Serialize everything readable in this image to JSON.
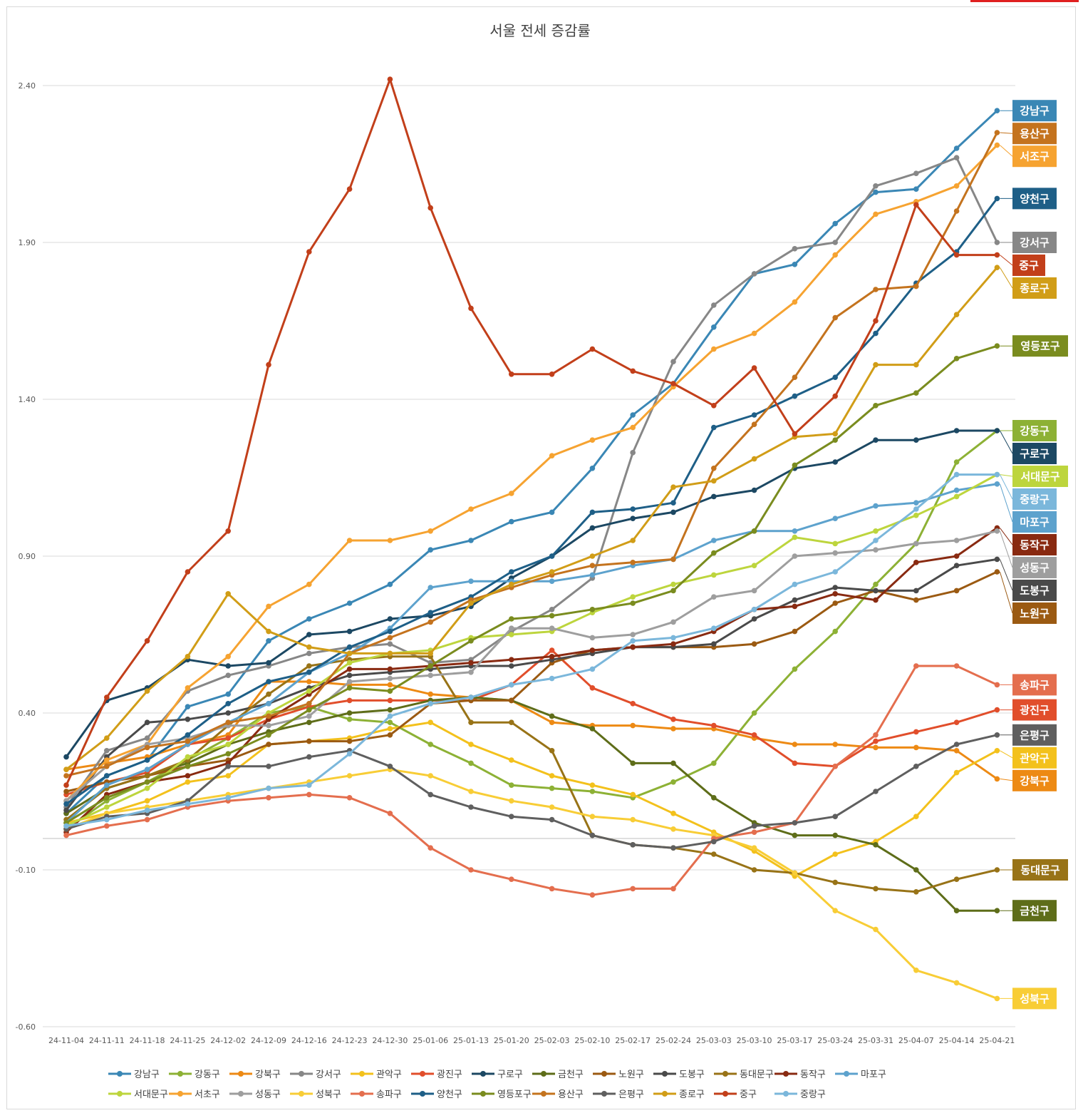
{
  "chart_data": {
    "type": "line",
    "title": "서울 전세 증감률",
    "xlabel": "",
    "ylabel": "",
    "ylim": [
      -0.6,
      2.4
    ],
    "yticks": [
      "2.40",
      "1.90",
      "1.40",
      "0.90",
      "0.40",
      "-0.10",
      "-0.60"
    ],
    "grid": true,
    "legend_position": "bottom",
    "categories": [
      "24-11-04",
      "24-11-11",
      "24-11-18",
      "24-11-25",
      "24-12-02",
      "24-12-09",
      "24-12-16",
      "24-12-23",
      "24-12-30",
      "25-01-06",
      "25-01-13",
      "25-01-20",
      "25-02-03",
      "25-02-10",
      "25-02-17",
      "25-02-24",
      "25-03-03",
      "25-03-10",
      "25-03-17",
      "25-03-24",
      "25-03-31",
      "25-04-07",
      "25-04-14",
      "25-04-21"
    ],
    "series": [
      {
        "name": "강남구",
        "color": "#3A87B5",
        "label": "강남구",
        "values": [
          0.08,
          0.2,
          0.25,
          0.42,
          0.46,
          0.63,
          0.7,
          0.75,
          0.81,
          0.92,
          0.95,
          1.01,
          1.04,
          1.18,
          1.35,
          1.45,
          1.63,
          1.8,
          1.83,
          1.96,
          2.06,
          2.07,
          2.2,
          2.32
        ]
      },
      {
        "name": "강동구",
        "color": "#8DB135",
        "label": "강동구",
        "values": [
          0.03,
          0.12,
          0.18,
          0.25,
          0.32,
          0.4,
          0.42,
          0.38,
          0.37,
          0.3,
          0.24,
          0.17,
          0.16,
          0.15,
          0.13,
          0.18,
          0.24,
          0.4,
          0.54,
          0.66,
          0.81,
          0.94,
          1.2,
          1.3
        ]
      },
      {
        "name": "강북구",
        "color": "#ED8A14",
        "label": "강북구",
        "values": [
          0.22,
          0.24,
          0.26,
          0.3,
          0.33,
          0.5,
          0.5,
          0.49,
          0.49,
          0.46,
          0.45,
          0.44,
          0.37,
          0.36,
          0.36,
          0.35,
          0.35,
          0.32,
          0.3,
          0.3,
          0.29,
          0.29,
          0.28,
          0.19
        ]
      },
      {
        "name": "강서구",
        "color": "#878787",
        "label": "강서구",
        "values": [
          0.1,
          0.28,
          0.32,
          0.47,
          0.52,
          0.55,
          0.59,
          0.61,
          0.62,
          0.56,
          0.57,
          0.66,
          0.73,
          0.83,
          1.23,
          1.52,
          1.7,
          1.8,
          1.88,
          1.9,
          2.08,
          2.12,
          2.17,
          1.9
        ]
      },
      {
        "name": "관악구",
        "color": "#F3C11C",
        "label": "관악구",
        "values": [
          0.05,
          0.08,
          0.12,
          0.18,
          0.2,
          0.3,
          0.31,
          0.32,
          0.35,
          0.37,
          0.3,
          0.25,
          0.2,
          0.17,
          0.14,
          0.08,
          0.02,
          -0.04,
          -0.12,
          -0.05,
          -0.01,
          0.07,
          0.21,
          0.28
        ]
      },
      {
        "name": "광진구",
        "color": "#E14E2B",
        "label": "광진구",
        "values": [
          0.14,
          0.18,
          0.21,
          0.3,
          0.32,
          0.38,
          0.42,
          0.44,
          0.44,
          0.44,
          0.44,
          0.49,
          0.6,
          0.48,
          0.43,
          0.38,
          0.36,
          0.33,
          0.24,
          0.23,
          0.31,
          0.34,
          0.37,
          0.41
        ]
      },
      {
        "name": "구로구",
        "color": "#1C4863",
        "label": "구로구",
        "values": [
          0.26,
          0.44,
          0.48,
          0.57,
          0.55,
          0.56,
          0.65,
          0.66,
          0.7,
          0.71,
          0.74,
          0.83,
          0.9,
          0.99,
          1.02,
          1.04,
          1.09,
          1.11,
          1.18,
          1.2,
          1.27,
          1.27,
          1.3,
          1.3
        ]
      },
      {
        "name": "금천구",
        "color": "#5E6D19",
        "label": "금천구",
        "values": [
          0.08,
          0.16,
          0.2,
          0.24,
          0.3,
          0.34,
          0.37,
          0.4,
          0.41,
          0.44,
          0.45,
          0.44,
          0.39,
          0.35,
          0.24,
          0.24,
          0.13,
          0.05,
          0.01,
          0.01,
          -0.02,
          -0.1,
          -0.23,
          -0.23
        ]
      },
      {
        "name": "노원구",
        "color": "#9B5A12",
        "label": "노원구",
        "values": [
          0.15,
          0.18,
          0.2,
          0.23,
          0.25,
          0.3,
          0.31,
          0.31,
          0.33,
          0.43,
          0.44,
          0.44,
          0.56,
          0.6,
          0.61,
          0.61,
          0.61,
          0.62,
          0.66,
          0.75,
          0.79,
          0.76,
          0.79,
          0.85
        ]
      },
      {
        "name": "도봉구",
        "color": "#4A4A4A",
        "label": "도봉구",
        "values": [
          0.09,
          0.26,
          0.37,
          0.38,
          0.4,
          0.43,
          0.48,
          0.52,
          0.53,
          0.54,
          0.55,
          0.55,
          0.57,
          0.59,
          0.61,
          0.61,
          0.62,
          0.7,
          0.76,
          0.8,
          0.79,
          0.79,
          0.87,
          0.89
        ]
      },
      {
        "name": "동대문구",
        "color": "#987317",
        "label": "동대문구",
        "values": [
          0.06,
          0.16,
          0.2,
          0.25,
          0.36,
          0.46,
          0.55,
          0.57,
          0.58,
          0.58,
          0.37,
          0.37,
          0.28,
          0.01,
          -0.02,
          -0.03,
          -0.05,
          -0.1,
          -0.11,
          -0.14,
          -0.16,
          -0.17,
          -0.13,
          -0.1
        ]
      },
      {
        "name": "동작구",
        "color": "#892A11",
        "label": "동작구",
        "values": [
          0.02,
          0.14,
          0.18,
          0.2,
          0.24,
          0.38,
          0.46,
          0.54,
          0.54,
          0.55,
          0.56,
          0.57,
          0.58,
          0.6,
          0.61,
          0.62,
          0.66,
          0.73,
          0.74,
          0.78,
          0.76,
          0.88,
          0.9,
          0.99
        ]
      },
      {
        "name": "마포구",
        "color": "#5DA2CD",
        "label": "마포구",
        "values": [
          0.05,
          0.17,
          0.22,
          0.3,
          0.37,
          0.43,
          0.53,
          0.59,
          0.67,
          0.8,
          0.82,
          0.82,
          0.82,
          0.84,
          0.87,
          0.89,
          0.95,
          0.98,
          0.98,
          1.02,
          1.06,
          1.07,
          1.11,
          1.13
        ]
      },
      {
        "name": "서대문구",
        "color": "#BDD53D",
        "label": "서대문구",
        "values": [
          0.04,
          0.1,
          0.16,
          0.26,
          0.3,
          0.4,
          0.47,
          0.56,
          0.59,
          0.6,
          0.64,
          0.65,
          0.66,
          0.72,
          0.77,
          0.81,
          0.84,
          0.87,
          0.96,
          0.94,
          0.98,
          1.03,
          1.09,
          1.16
        ]
      },
      {
        "name": "서초구",
        "color": "#F6A331",
        "label": "서초구",
        "values": [
          0.12,
          0.25,
          0.3,
          0.48,
          0.58,
          0.74,
          0.81,
          0.95,
          0.95,
          0.98,
          1.05,
          1.1,
          1.22,
          1.27,
          1.31,
          1.44,
          1.56,
          1.61,
          1.71,
          1.86,
          1.99,
          2.03,
          2.08,
          2.21
        ]
      },
      {
        "name": "성동구",
        "color": "#9E9E9E",
        "label": "성동구",
        "values": [
          0.12,
          0.23,
          0.3,
          0.32,
          0.36,
          0.36,
          0.39,
          0.5,
          0.51,
          0.52,
          0.53,
          0.67,
          0.67,
          0.64,
          0.65,
          0.69,
          0.77,
          0.79,
          0.9,
          0.91,
          0.92,
          0.94,
          0.95,
          0.98
        ]
      },
      {
        "name": "성북구",
        "color": "#F8CD36",
        "label": "성북구",
        "values": [
          0.03,
          0.08,
          0.1,
          0.12,
          0.14,
          0.16,
          0.18,
          0.2,
          0.22,
          0.2,
          0.15,
          0.12,
          0.1,
          0.07,
          0.06,
          0.03,
          0.01,
          -0.03,
          -0.11,
          -0.23,
          -0.29,
          -0.42,
          -0.46,
          -0.51
        ]
      },
      {
        "name": "송파구",
        "color": "#E46E4E",
        "label": "송파구",
        "values": [
          0.01,
          0.04,
          0.06,
          0.1,
          0.12,
          0.13,
          0.14,
          0.13,
          0.08,
          -0.03,
          -0.1,
          -0.13,
          -0.16,
          -0.18,
          -0.16,
          -0.16,
          0.0,
          0.02,
          0.05,
          0.23,
          0.33,
          0.55,
          0.55,
          0.49
        ]
      },
      {
        "name": "양천구",
        "color": "#1E5F87",
        "label": "양천구",
        "values": [
          0.11,
          0.2,
          0.25,
          0.33,
          0.43,
          0.5,
          0.53,
          0.61,
          0.66,
          0.72,
          0.77,
          0.85,
          0.9,
          1.04,
          1.05,
          1.07,
          1.31,
          1.35,
          1.41,
          1.47,
          1.61,
          1.77,
          1.87,
          2.04
        ]
      },
      {
        "name": "영등포구",
        "color": "#7A8C1F",
        "label": "영등포구",
        "values": [
          0.05,
          0.13,
          0.18,
          0.23,
          0.27,
          0.33,
          0.41,
          0.48,
          0.47,
          0.55,
          0.63,
          0.7,
          0.71,
          0.73,
          0.75,
          0.79,
          0.91,
          0.98,
          1.19,
          1.27,
          1.38,
          1.42,
          1.53,
          1.57
        ]
      },
      {
        "name": "용산구",
        "color": "#C4731E",
        "label": "용산구",
        "values": [
          0.2,
          0.23,
          0.29,
          0.31,
          0.37,
          0.39,
          0.43,
          0.59,
          0.64,
          0.69,
          0.76,
          0.8,
          0.84,
          0.87,
          0.88,
          0.89,
          1.18,
          1.32,
          1.47,
          1.66,
          1.75,
          1.76,
          2.0,
          2.25
        ]
      },
      {
        "name": "은평구",
        "color": "#5F5F5F",
        "label": "은평구",
        "values": [
          0.03,
          0.07,
          0.08,
          0.12,
          0.23,
          0.23,
          0.26,
          0.28,
          0.23,
          0.14,
          0.1,
          0.07,
          0.06,
          0.01,
          -0.02,
          -0.03,
          -0.01,
          0.04,
          0.05,
          0.07,
          0.15,
          0.23,
          0.3,
          0.33
        ]
      },
      {
        "name": "종로구",
        "color": "#D19D17",
        "label": "종로구",
        "values": [
          0.22,
          0.32,
          0.47,
          0.58,
          0.78,
          0.66,
          0.61,
          0.59,
          0.59,
          0.59,
          0.75,
          0.81,
          0.85,
          0.9,
          0.95,
          1.12,
          1.14,
          1.21,
          1.28,
          1.29,
          1.51,
          1.51,
          1.67,
          1.82
        ]
      },
      {
        "name": "중구",
        "color": "#C23F1A",
        "label": "중구",
        "values": [
          0.17,
          0.45,
          0.63,
          0.85,
          0.98,
          1.51,
          1.87,
          2.07,
          2.42,
          2.01,
          1.69,
          1.48,
          1.48,
          1.56,
          1.49,
          1.45,
          1.38,
          1.5,
          1.29,
          1.41,
          1.65,
          2.02,
          1.86,
          1.86
        ]
      },
      {
        "name": "중랑구",
        "color": "#7BB7DB",
        "label": "중랑구",
        "values": [
          0.04,
          0.06,
          0.09,
          0.11,
          0.13,
          0.16,
          0.17,
          0.27,
          0.39,
          0.43,
          0.45,
          0.49,
          0.51,
          0.54,
          0.63,
          0.64,
          0.67,
          0.73,
          0.81,
          0.85,
          0.95,
          1.05,
          1.16,
          1.16
        ]
      }
    ],
    "end_labels": [
      {
        "text": "강남구",
        "color": "#3A87B5"
      },
      {
        "text": "용산구",
        "color": "#C4731E"
      },
      {
        "text": "서조구",
        "color": "#F6A331"
      },
      {
        "text": "양천구",
        "color": "#1E5F87"
      },
      {
        "text": "강서구",
        "color": "#878787"
      },
      {
        "text": "중구",
        "color": "#C23F1A"
      },
      {
        "text": "종로구",
        "color": "#D19D17"
      },
      {
        "text": "영등포구",
        "color": "#7A8C1F"
      },
      {
        "text": "강동구",
        "color": "#8DB135"
      },
      {
        "text": "구로구",
        "color": "#1C4863"
      },
      {
        "text": "서대문구",
        "color": "#BDD53D"
      },
      {
        "text": "중랑구",
        "color": "#7BB7DB"
      },
      {
        "text": "마포구",
        "color": "#5DA2CD"
      },
      {
        "text": "동작구",
        "color": "#892A11"
      },
      {
        "text": "성동구",
        "color": "#9E9E9E"
      },
      {
        "text": "노원구",
        "color": "#9B5A12"
      },
      {
        "text": "도봉구",
        "color": "#4A4A4A"
      },
      {
        "text": "송파구",
        "color": "#E46E4E"
      },
      {
        "text": "광진구",
        "color": "#E14E2B"
      },
      {
        "text": "은평구",
        "color": "#5F5F5F"
      },
      {
        "text": "관악구",
        "color": "#F3C11C"
      },
      {
        "text": "강북구",
        "color": "#ED8A14"
      },
      {
        "text": "동대문구",
        "color": "#987317"
      },
      {
        "text": "금천구",
        "color": "#5E6D19"
      },
      {
        "text": "성북구",
        "color": "#F8CD36"
      }
    ]
  }
}
